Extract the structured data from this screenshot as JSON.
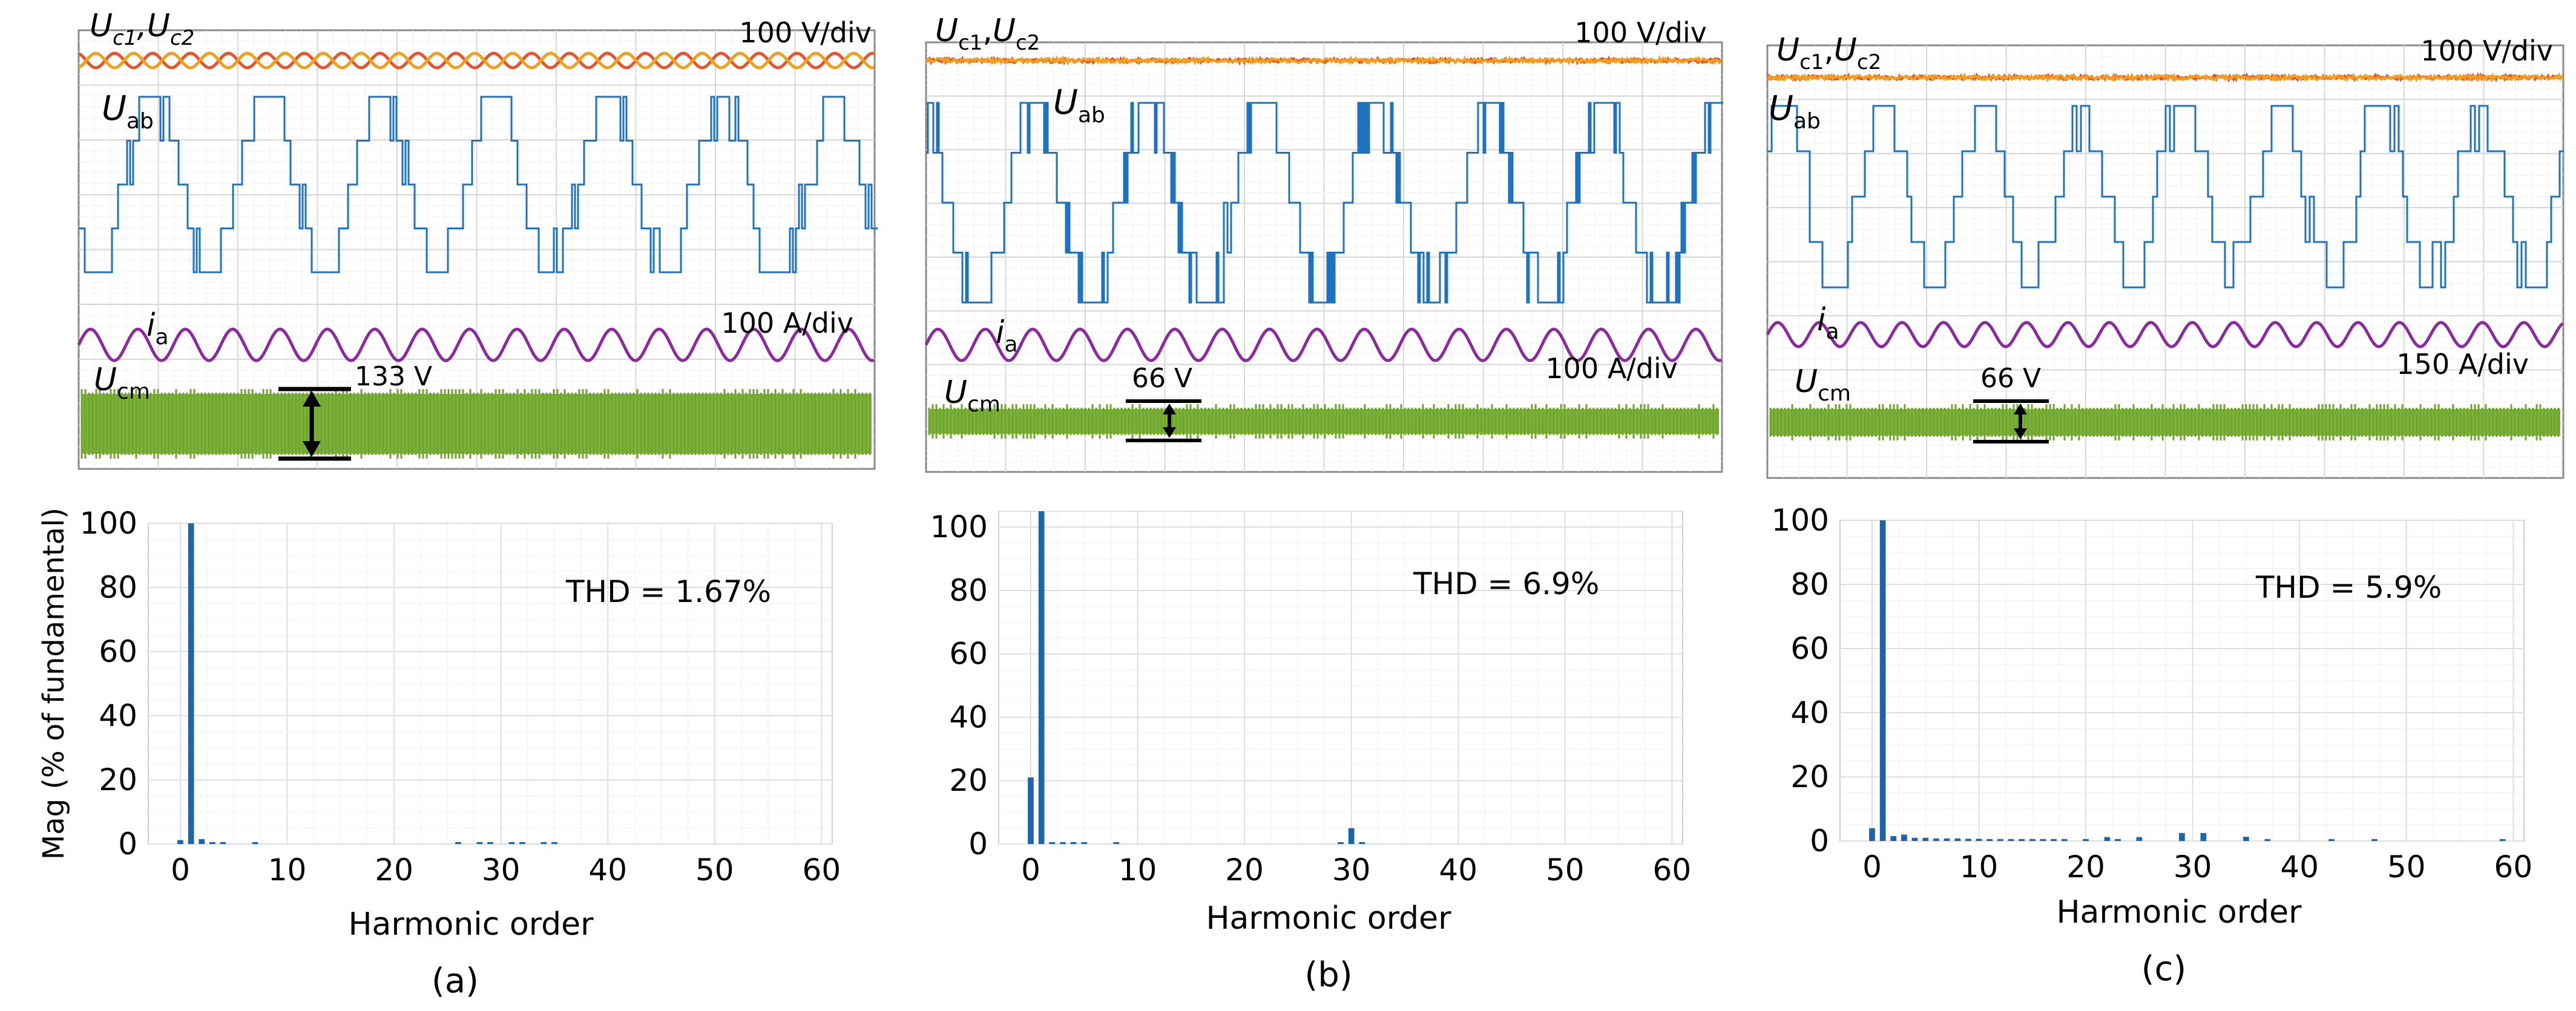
{
  "chart_data": [
    {
      "panel": "(a)",
      "type": "oscilloscope",
      "traces": {
        "uc_main": "U",
        "uc_sub1": "c1",
        "uc_comma": ",",
        "uc_main2": "U",
        "uc_sub2": "c2",
        "uab_main": "U",
        "uab_sub": "ab",
        "ia_main": "i",
        "ia_sub": "a",
        "ucm_main": "U",
        "ucm_sub": "cm"
      },
      "uc_italic_sub": true,
      "volt_scale": "100 V/div",
      "curr_scale": "100 A/div",
      "ucm_amp_label": "133 V",
      "ucm_amp_value": 133,
      "uab_levels": 5,
      "uab_switching": "moderate",
      "uc_ripple": "visible"
    },
    {
      "panel": "(a)",
      "type": "bar",
      "title": "THD = 1.67%",
      "thd": 1.67,
      "xlabel": "Harmonic order",
      "ylabel": "Mag (% of fundamental)",
      "xlim": [
        -3,
        61
      ],
      "ylim": [
        0,
        100
      ],
      "xticks": [
        0,
        10,
        20,
        30,
        40,
        50,
        60
      ],
      "yticks": [
        0,
        20,
        40,
        60,
        80,
        100
      ],
      "x": [
        0,
        1,
        2,
        3,
        4,
        7,
        26,
        28,
        29,
        31,
        32,
        34,
        35
      ],
      "values": [
        1.2,
        100,
        1.5,
        0.5,
        0.3,
        0.4,
        0.3,
        0.5,
        0.3,
        0.6,
        0.3,
        0.4,
        0.3
      ]
    },
    {
      "panel": "(b)",
      "type": "oscilloscope",
      "traces": {
        "uc_main": "U",
        "uc_sub1": "c1",
        "uc_comma": ",",
        "uc_main2": "U",
        "uc_sub2": "c2",
        "uab_main": "U",
        "uab_sub": "ab",
        "ia_main": "i",
        "ia_sub": "a",
        "ucm_main": "U",
        "ucm_sub": "cm"
      },
      "uc_italic_sub": false,
      "volt_scale": "100 V/div",
      "curr_scale": "100 A/div",
      "ucm_amp_label": "66 V",
      "ucm_amp_value": 66,
      "uab_levels": 5,
      "uab_switching": "dense",
      "uc_ripple": "flat"
    },
    {
      "panel": "(b)",
      "type": "bar",
      "title": "THD = 6.9%",
      "thd": 6.9,
      "xlabel": "Harmonic order",
      "ylabel": "",
      "xlim": [
        -3,
        61
      ],
      "ylim": [
        0,
        105
      ],
      "xticks": [
        0,
        10,
        20,
        30,
        40,
        50,
        60
      ],
      "yticks": [
        0,
        20,
        40,
        60,
        80,
        100
      ],
      "x": [
        0,
        1,
        2,
        3,
        4,
        5,
        8,
        29,
        30,
        31
      ],
      "values": [
        21,
        105,
        0.3,
        0.4,
        0.3,
        0.3,
        0.3,
        0.6,
        5,
        0.5
      ]
    },
    {
      "panel": "(c)",
      "type": "oscilloscope",
      "traces": {
        "uc_main": "U",
        "uc_sub1": "c1",
        "uc_comma": ",",
        "uc_main2": "U",
        "uc_sub2": "c2",
        "uab_main": "U",
        "uab_sub": "ab",
        "ia_main": "i",
        "ia_sub": "a",
        "ucm_main": "U",
        "ucm_sub": "cm"
      },
      "uc_italic_sub": false,
      "volt_scale": "100 V/div",
      "curr_scale": "150 A/div",
      "ucm_amp_label": "66 V",
      "ucm_amp_value": 66,
      "uab_levels": 5,
      "uab_switching": "sparse",
      "uc_ripple": "flat"
    },
    {
      "panel": "(c)",
      "type": "bar",
      "title": "THD = 5.9%",
      "thd": 5.9,
      "xlabel": "Harmonic order",
      "ylabel": "",
      "xlim": [
        -3,
        61
      ],
      "ylim": [
        0,
        100
      ],
      "xticks": [
        0,
        10,
        20,
        30,
        40,
        50,
        60
      ],
      "yticks": [
        0,
        20,
        40,
        60,
        80,
        100
      ],
      "x": [
        0,
        1,
        2,
        3,
        4,
        5,
        6,
        7,
        8,
        9,
        10,
        11,
        12,
        13,
        14,
        15,
        16,
        17,
        18,
        20,
        22,
        23,
        25,
        29,
        31,
        35,
        37,
        43,
        47,
        59
      ],
      "values": [
        4,
        100,
        1.5,
        2,
        1,
        1,
        0.8,
        0.8,
        0.8,
        0.7,
        0.7,
        0.6,
        0.6,
        0.6,
        0.5,
        0.5,
        0.5,
        0.5,
        0.4,
        0.5,
        1.2,
        0.5,
        1.2,
        2.5,
        2.5,
        1.3,
        0.5,
        0.5,
        0.4,
        0.3
      ]
    }
  ]
}
